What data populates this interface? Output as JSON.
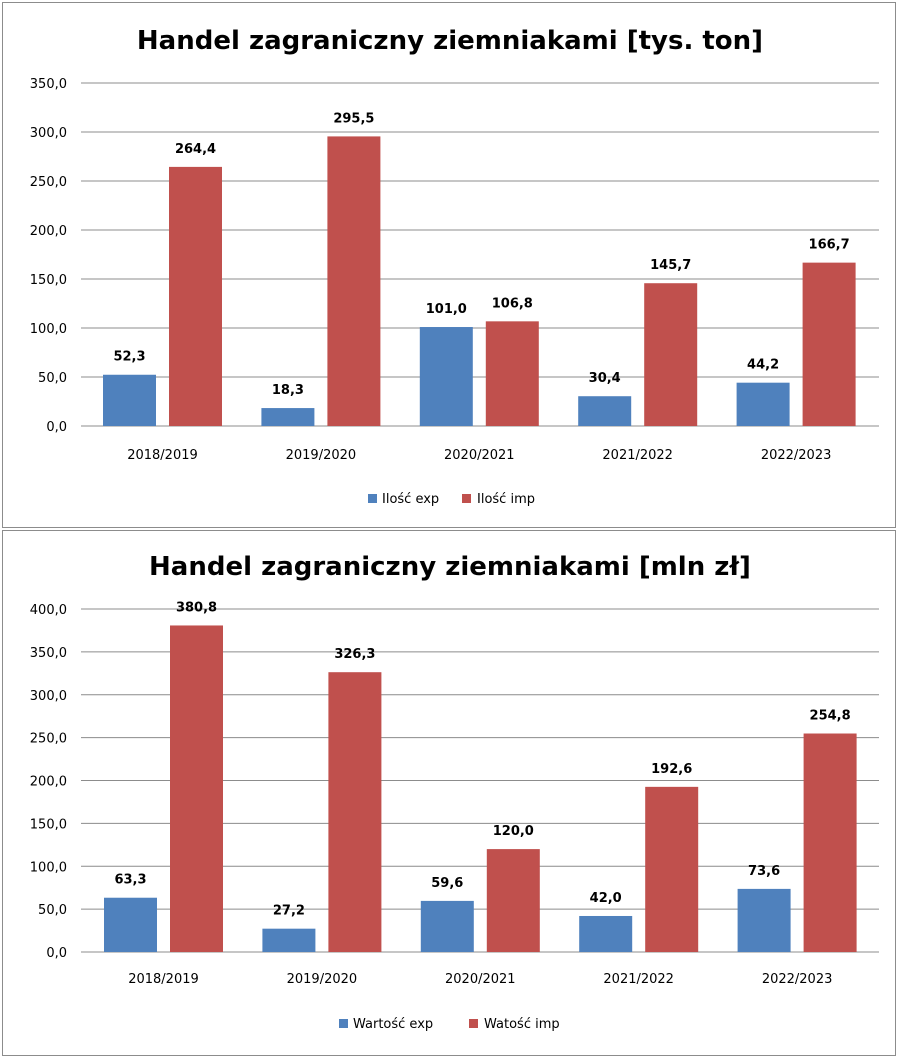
{
  "colors": {
    "exp": "#4f81bd",
    "imp": "#c0504d"
  },
  "chart_data": [
    {
      "type": "bar",
      "title": "Handel zagraniczny ziemniakami [tys. ton]",
      "categories": [
        "2018/2019",
        "2019/2020",
        "2020/2021",
        "2021/2022",
        "2022/2023"
      ],
      "series": [
        {
          "name": "Ilość exp",
          "values": [
            52.3,
            18.3,
            101.0,
            30.4,
            44.2
          ],
          "labels": [
            "52,3",
            "18,3",
            "101,0",
            "30,4",
            "44,2"
          ]
        },
        {
          "name": "Ilość imp",
          "values": [
            264.4,
            295.5,
            106.8,
            145.7,
            166.7
          ],
          "labels": [
            "264,4",
            "295,5",
            "106,8",
            "145,7",
            "166,7"
          ]
        }
      ],
      "ylim": [
        0,
        350
      ],
      "yticks": [
        "0,0",
        "50,0",
        "100,0",
        "150,0",
        "200,0",
        "250,0",
        "300,0",
        "350,0"
      ],
      "xlabel": "",
      "ylabel": "",
      "grid": true,
      "legend": "bottom"
    },
    {
      "type": "bar",
      "title": "Handel zagraniczny ziemniakami [mln zł]",
      "categories": [
        "2018/2019",
        "2019/2020",
        "2020/2021",
        "2021/2022",
        "2022/2023"
      ],
      "series": [
        {
          "name": "Wartość exp",
          "values": [
            63.3,
            27.2,
            59.6,
            42.0,
            73.6
          ],
          "labels": [
            "63,3",
            "27,2",
            "59,6",
            "42,0",
            "73,6"
          ]
        },
        {
          "name": "Watość imp",
          "values": [
            380.8,
            326.3,
            120.0,
            192.6,
            254.8
          ],
          "labels": [
            "380,8",
            "326,3",
            "120,0",
            "192,6",
            "254,8"
          ]
        }
      ],
      "ylim": [
        0,
        400
      ],
      "yticks": [
        "0,0",
        "50,0",
        "100,0",
        "150,0",
        "200,0",
        "250,0",
        "300,0",
        "350,0",
        "400,0"
      ],
      "xlabel": "",
      "ylabel": "",
      "grid": true,
      "legend": "bottom"
    }
  ]
}
